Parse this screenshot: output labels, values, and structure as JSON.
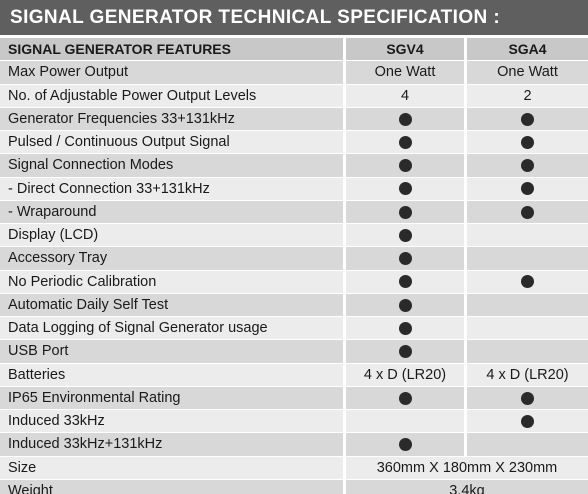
{
  "title": "SIGNAL GENERATOR TECHNICAL SPECIFICATION :",
  "header": {
    "feature": "SIGNAL GENERATOR FEATURES",
    "col1": "SGV4",
    "col2": "SGA4"
  },
  "rows": [
    {
      "feature": "Max Power Output",
      "col1": "One Watt",
      "col2": "One Watt"
    },
    {
      "feature": "No. of Adjustable Power Output Levels",
      "col1": "4",
      "col2": "2"
    },
    {
      "feature": "Generator Frequencies 33+131kHz",
      "col1": "dot",
      "col2": "dot"
    },
    {
      "feature": "Pulsed / Continuous Output Signal",
      "col1": "dot",
      "col2": "dot"
    },
    {
      "feature": "Signal Connection Modes",
      "col1": "dot",
      "col2": "dot"
    },
    {
      "feature": "- Direct Connection 33+131kHz",
      "col1": "dot",
      "col2": "dot"
    },
    {
      "feature": "- Wraparound",
      "col1": "dot",
      "col2": "dot"
    },
    {
      "feature": "Display (LCD)",
      "col1": "dot",
      "col2": ""
    },
    {
      "feature": "Accessory Tray",
      "col1": "dot",
      "col2": ""
    },
    {
      "feature": "No Periodic Calibration",
      "col1": "dot",
      "col2": "dot"
    },
    {
      "feature": "Automatic Daily Self Test",
      "col1": "dot",
      "col2": ""
    },
    {
      "feature": "Data Logging of Signal Generator usage",
      "col1": "dot",
      "col2": ""
    },
    {
      "feature": "USB Port",
      "col1": "dot",
      "col2": ""
    },
    {
      "feature": "Batteries",
      "col1": "4 x D (LR20)",
      "col2": "4 x D (LR20)"
    },
    {
      "feature": "IP65 Environmental Rating",
      "col1": "dot",
      "col2": "dot"
    },
    {
      "feature": "Induced 33kHz",
      "col1": "",
      "col2": "dot"
    },
    {
      "feature": "Induced 33kHz+131kHz",
      "col1": "dot",
      "col2": ""
    },
    {
      "feature": "Size",
      "merged": "360mm X 180mm X 230mm"
    },
    {
      "feature": "Weight",
      "merged": "3.4kg"
    }
  ],
  "colors": {
    "title_bar": "#5f5f5f",
    "row_dark": "#d8d8d8",
    "row_light": "#ececec",
    "header_row": "#c8c8c8",
    "dot": "#2a2a2a"
  }
}
